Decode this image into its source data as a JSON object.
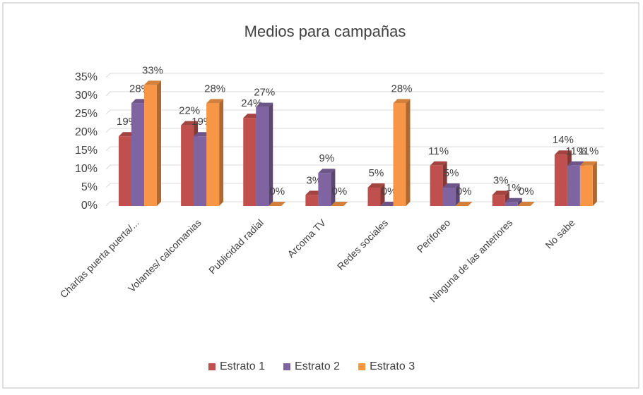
{
  "chart_data": {
    "type": "bar",
    "title": "Medios para campañas",
    "categories": [
      "Charlas puerta puerta/...",
      "Volantes/ calcomanias",
      "Publicidad radial",
      "Arcoma TV",
      "Redes sociales",
      "Perifoneo",
      "Ninguna de las anteriores",
      "No sabe"
    ],
    "series": [
      {
        "name": "Estrato 1",
        "color": "#c0504d",
        "values": [
          19,
          22,
          24,
          3,
          5,
          11,
          3,
          14
        ],
        "value_labels": [
          "19%",
          "22%",
          "24%",
          "3%",
          "5%",
          "11%",
          "3%",
          "14%"
        ]
      },
      {
        "name": "Estrato 2",
        "color": "#8064a2",
        "values": [
          28,
          19,
          27,
          9,
          0,
          5,
          1,
          11
        ],
        "value_labels": [
          "28%",
          "19%",
          "27%",
          "9%",
          "0%",
          "5%",
          "1%",
          "11%"
        ]
      },
      {
        "name": "Estrato 3",
        "color": "#f79646",
        "values": [
          33,
          28,
          0,
          0,
          28,
          0,
          0,
          11
        ],
        "value_labels": [
          "33%",
          "28%",
          "0%",
          "0%",
          "28%",
          "0%",
          "0%",
          "11%"
        ]
      }
    ],
    "ylim": [
      0,
      35
    ],
    "yticks": [
      {
        "value": 0,
        "label": "0%"
      },
      {
        "value": 5,
        "label": "5%"
      },
      {
        "value": 10,
        "label": "10%"
      },
      {
        "value": 15,
        "label": "15%"
      },
      {
        "value": 20,
        "label": "20%"
      },
      {
        "value": 25,
        "label": "25%"
      },
      {
        "value": 30,
        "label": "30%"
      },
      {
        "value": 35,
        "label": "35%"
      }
    ],
    "grid": true,
    "legend": "bottom"
  }
}
